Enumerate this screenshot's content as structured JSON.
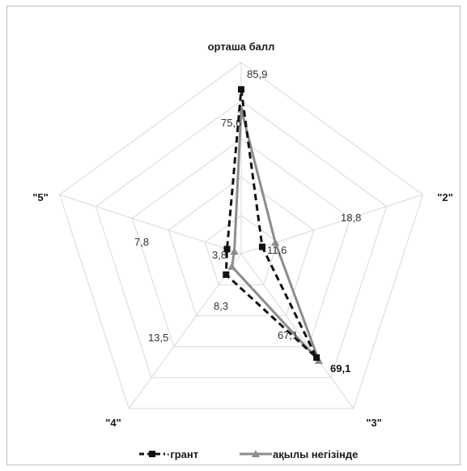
{
  "chart_data": {
    "type": "radar",
    "title": "",
    "categories": [
      "орташа балл",
      "\"2\"",
      "\"3\"",
      "\"4\"",
      "\"5\""
    ],
    "rmax": 100,
    "gridlines": 5,
    "grid": true,
    "legend_position": "bottom",
    "series": [
      {
        "name": "грант",
        "legend_label": "·грант",
        "values": [
          85.9,
          11.6,
          67.1,
          13.5,
          7.8
        ],
        "value_labels": [
          "85,9",
          "11,6",
          "67,1",
          "13,5",
          "7,8"
        ],
        "color": "#111111",
        "line_style": "dashed",
        "marker": "square"
      },
      {
        "name": "ақылы негізінде",
        "legend_label": "ақылы негізінде",
        "values": [
          75.6,
          18.8,
          69.1,
          8.3,
          3.8
        ],
        "value_labels": [
          "75,6",
          "18,8",
          "69,1",
          "8,3",
          "3,8"
        ],
        "color": "#8c8c8c",
        "line_style": "solid",
        "marker": "triangle"
      }
    ]
  },
  "colors": {
    "grid": "#d9d9d9",
    "frame": "#bfbfbf"
  }
}
